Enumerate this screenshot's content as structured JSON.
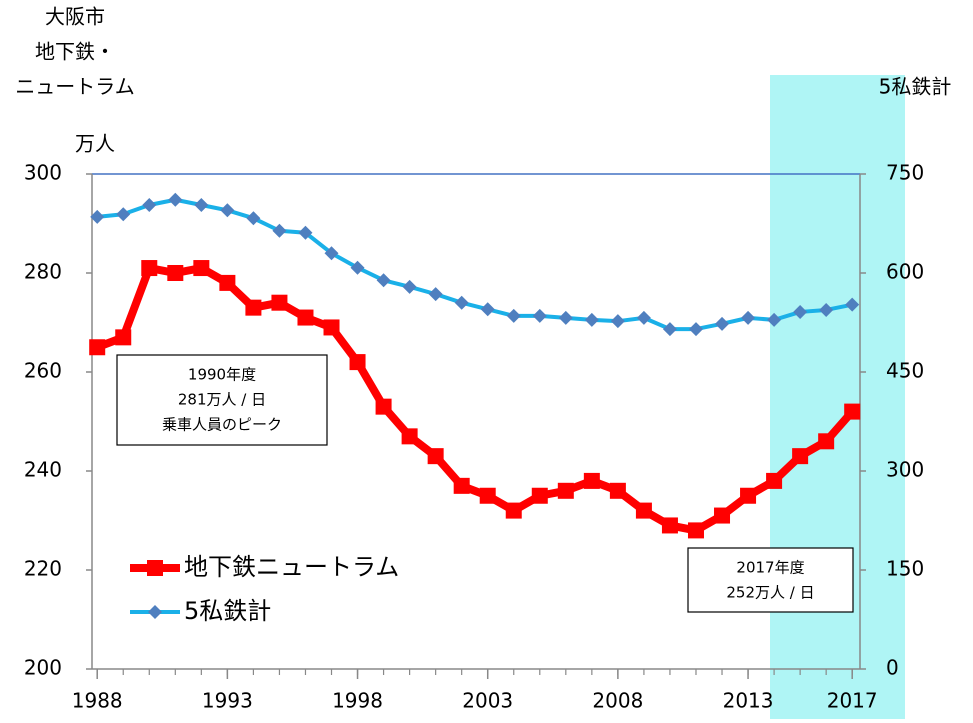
{
  "chart_data": {
    "type": "line",
    "ylabel": [
      "大阪市",
      "地下鉄・",
      "ニュートラム"
    ],
    "yunit": "万人",
    "y2label": "5私鉄計",
    "x": [
      1988,
      1989,
      1990,
      1991,
      1992,
      1993,
      1994,
      1995,
      1996,
      1997,
      1998,
      1999,
      2000,
      2001,
      2002,
      2003,
      2004,
      2005,
      2006,
      2007,
      2008,
      2009,
      2010,
      2011,
      2012,
      2013,
      2014,
      2015,
      2016,
      2017
    ],
    "xlim": [
      1987.8,
      2017.3
    ],
    "xticks": [
      1988,
      1993,
      1998,
      2003,
      2008,
      2013,
      2017
    ],
    "ylim": [
      200,
      300
    ],
    "yticks": [
      200,
      220,
      240,
      260,
      280,
      300
    ],
    "y2lim": [
      0,
      750
    ],
    "y2ticks": [
      0,
      150,
      300,
      450,
      600,
      750
    ],
    "legend": "lower left",
    "series": [
      {
        "name": "地下鉄ニュートラム",
        "color": "#ff0000",
        "values": [
          265,
          267,
          281,
          280,
          281,
          278,
          273,
          274,
          271,
          269,
          262,
          253,
          247,
          243,
          237,
          235,
          232,
          235,
          236,
          238,
          236,
          232,
          229,
          228,
          231,
          235,
          238,
          243,
          246,
          252
        ]
      },
      {
        "name": "5私鉄計",
        "color": "#1ab0e8",
        "marker_color": "#4f7fbf",
        "axis": "y2",
        "values": [
          685,
          689,
          703,
          711,
          703,
          695,
          683,
          664,
          661,
          630,
          608,
          589,
          579,
          568,
          555,
          545,
          535,
          535,
          532,
          529,
          527,
          532,
          515,
          515,
          523,
          532,
          529,
          541,
          544,
          552
        ]
      }
    ],
    "annotations": [
      {
        "lines": [
          "1990年度",
          "281万人 / 日",
          "乗車人員のピーク"
        ]
      },
      {
        "lines": [
          "2017年度",
          "252万人 / 日"
        ]
      }
    ]
  }
}
